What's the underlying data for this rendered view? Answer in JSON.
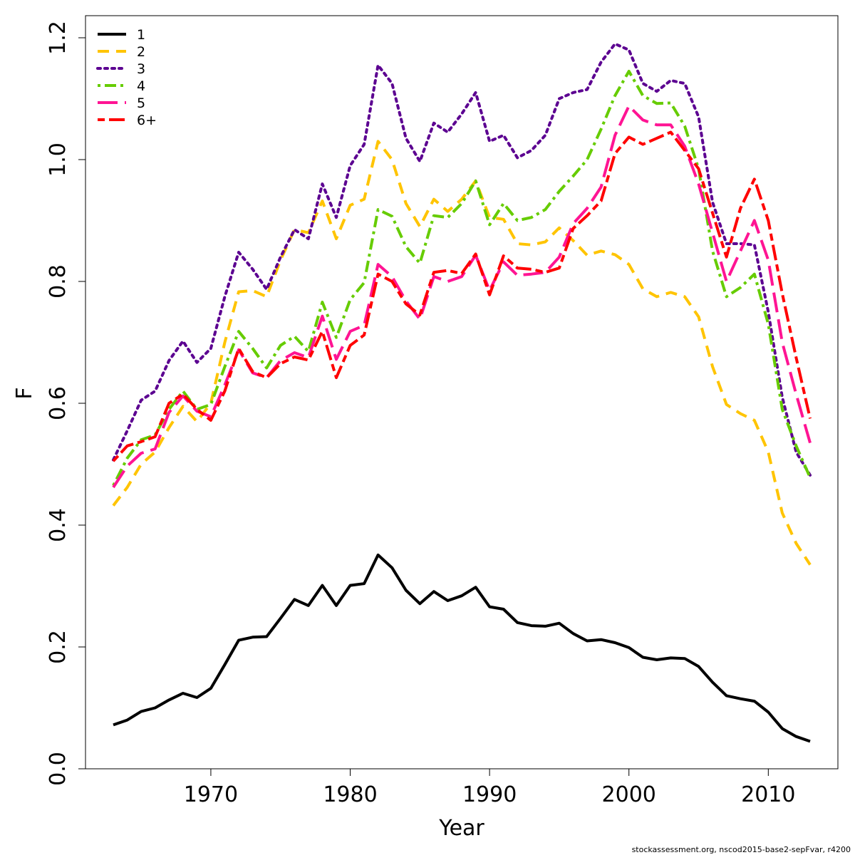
{
  "chart_data": {
    "type": "line",
    "title": "",
    "xlabel": "Year",
    "ylabel": "F",
    "xlim": [
      1962,
      2015
    ],
    "ylim": [
      0,
      1.22
    ],
    "x_ticks": [
      1970,
      1980,
      1990,
      2000,
      2010
    ],
    "y_ticks": [
      0.0,
      0.2,
      0.4,
      0.6,
      0.8,
      1.0,
      1.2
    ],
    "x_tick_labels": [
      "1970",
      "1980",
      "1990",
      "2000",
      "2010"
    ],
    "y_tick_labels": [
      "0.0",
      "0.2",
      "0.4",
      "0.6",
      "0.8",
      "1.0",
      "1.2"
    ],
    "grid": false,
    "legend_position": "top-left",
    "x": [
      1963,
      1964,
      1965,
      1966,
      1967,
      1968,
      1969,
      1970,
      1971,
      1972,
      1973,
      1974,
      1975,
      1976,
      1977,
      1978,
      1979,
      1980,
      1981,
      1982,
      1983,
      1984,
      1985,
      1986,
      1987,
      1988,
      1989,
      1990,
      1991,
      1992,
      1993,
      1994,
      1995,
      1996,
      1997,
      1998,
      1999,
      2000,
      2001,
      2002,
      2003,
      2004,
      2005,
      2006,
      2007,
      2008,
      2009,
      2010,
      2011,
      2012,
      2013
    ],
    "series": [
      {
        "name": "1",
        "color": "#000000",
        "dash": "solid",
        "values": [
          0.072,
          0.08,
          0.094,
          0.1,
          0.113,
          0.124,
          0.117,
          0.132,
          0.171,
          0.211,
          0.216,
          0.217,
          0.247,
          0.278,
          0.268,
          0.301,
          0.268,
          0.301,
          0.304,
          0.351,
          0.33,
          0.293,
          0.271,
          0.291,
          0.276,
          0.284,
          0.298,
          0.266,
          0.262,
          0.24,
          0.235,
          0.234,
          0.239,
          0.222,
          0.21,
          0.212,
          0.207,
          0.199,
          0.183,
          0.179,
          0.182,
          0.181,
          0.168,
          0.142,
          0.12,
          0.115,
          0.111,
          0.093,
          0.066,
          0.053,
          0.045
        ]
      },
      {
        "name": "2",
        "color": "#FFC400",
        "dash": "dashed",
        "values": [
          0.432,
          0.462,
          0.5,
          0.52,
          0.56,
          0.595,
          0.57,
          0.6,
          0.7,
          0.783,
          0.785,
          0.775,
          0.835,
          0.885,
          0.88,
          0.932,
          0.87,
          0.925,
          0.935,
          1.03,
          1.0,
          0.928,
          0.89,
          0.935,
          0.915,
          0.935,
          0.965,
          0.905,
          0.902,
          0.862,
          0.86,
          0.865,
          0.888,
          0.867,
          0.843,
          0.85,
          0.844,
          0.828,
          0.788,
          0.775,
          0.782,
          0.775,
          0.742,
          0.66,
          0.598,
          0.583,
          0.572,
          0.52,
          0.42,
          0.37,
          0.335
        ]
      },
      {
        "name": "3",
        "color": "#5C0091",
        "dash": "dotted",
        "values": [
          0.507,
          0.555,
          0.605,
          0.62,
          0.67,
          0.702,
          0.667,
          0.69,
          0.775,
          0.848,
          0.82,
          0.787,
          0.84,
          0.885,
          0.87,
          0.96,
          0.905,
          0.99,
          1.025,
          1.155,
          1.125,
          1.035,
          0.997,
          1.06,
          1.045,
          1.075,
          1.11,
          1.03,
          1.04,
          1.003,
          1.015,
          1.04,
          1.1,
          1.11,
          1.115,
          1.16,
          1.19,
          1.18,
          1.125,
          1.112,
          1.13,
          1.125,
          1.07,
          0.93,
          0.862,
          0.862,
          0.86,
          0.75,
          0.61,
          0.52,
          0.482
        ]
      },
      {
        "name": "4",
        "color": "#66CC00",
        "dash": "dashdot",
        "values": [
          0.465,
          0.51,
          0.54,
          0.548,
          0.59,
          0.62,
          0.59,
          0.598,
          0.66,
          0.718,
          0.69,
          0.658,
          0.695,
          0.71,
          0.685,
          0.766,
          0.708,
          0.77,
          0.798,
          0.918,
          0.907,
          0.857,
          0.83,
          0.908,
          0.905,
          0.928,
          0.965,
          0.893,
          0.928,
          0.9,
          0.905,
          0.918,
          0.948,
          0.973,
          1.0,
          1.05,
          1.105,
          1.145,
          1.105,
          1.092,
          1.093,
          1.055,
          0.985,
          0.85,
          0.775,
          0.79,
          0.812,
          0.73,
          0.59,
          0.53,
          0.478
        ]
      },
      {
        "name": "5",
        "color": "#FF1493",
        "dash": "longdash",
        "values": [
          0.462,
          0.497,
          0.518,
          0.525,
          0.585,
          0.612,
          0.587,
          0.578,
          0.63,
          0.688,
          0.65,
          0.642,
          0.67,
          0.683,
          0.675,
          0.743,
          0.672,
          0.718,
          0.728,
          0.828,
          0.808,
          0.768,
          0.738,
          0.808,
          0.8,
          0.808,
          0.843,
          0.785,
          0.832,
          0.81,
          0.812,
          0.815,
          0.84,
          0.895,
          0.92,
          0.955,
          1.04,
          1.088,
          1.065,
          1.057,
          1.057,
          1.022,
          0.96,
          0.88,
          0.8,
          0.85,
          0.9,
          0.835,
          0.7,
          0.615,
          0.535
        ]
      },
      {
        "name": "6+",
        "color": "#FF0000",
        "dash": "twodash",
        "values": [
          0.505,
          0.53,
          0.537,
          0.545,
          0.6,
          0.615,
          0.59,
          0.572,
          0.62,
          0.69,
          0.652,
          0.642,
          0.665,
          0.676,
          0.671,
          0.718,
          0.642,
          0.695,
          0.712,
          0.812,
          0.8,
          0.763,
          0.745,
          0.815,
          0.818,
          0.813,
          0.845,
          0.778,
          0.842,
          0.822,
          0.82,
          0.815,
          0.822,
          0.887,
          0.908,
          0.932,
          1.01,
          1.037,
          1.025,
          1.035,
          1.045,
          1.015,
          0.985,
          0.912,
          0.84,
          0.92,
          0.968,
          0.9,
          0.78,
          0.675,
          0.575
        ]
      }
    ]
  },
  "footer": {
    "credit": "stockassessment.org, nscod2015-base2-sepFvar, r4200"
  }
}
